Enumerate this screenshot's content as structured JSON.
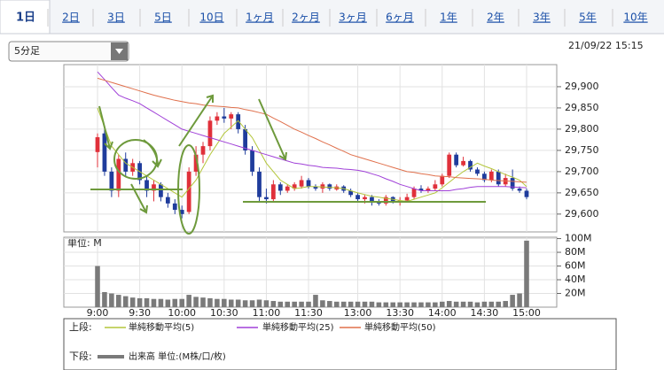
{
  "tabs": [
    "1日",
    "2日",
    "3日",
    "5日",
    "10日",
    "1ヶ月",
    "2ヶ月",
    "3ヶ月",
    "6ヶ月",
    "1年",
    "2年",
    "3年",
    "5年",
    "10年"
  ],
  "dropdown": "5分足",
  "timestamp": "21/09/22 15:15",
  "chart_data": {
    "type": "candlestick",
    "categories": [
      "9:00",
      null,
      null,
      null,
      null,
      null,
      "9:30",
      null,
      null,
      null,
      null,
      null,
      "10:00",
      null,
      null,
      null,
      null,
      null,
      "10:30",
      null,
      null,
      null,
      null,
      null,
      "11:00",
      null,
      null,
      null,
      null,
      null,
      "11:30",
      null,
      null,
      null,
      null,
      null,
      null,
      "13:00",
      null,
      null,
      null,
      null,
      null,
      "13:30",
      null,
      null,
      null,
      null,
      null,
      "14:00",
      null,
      null,
      null,
      null,
      null,
      "14:30",
      null,
      null,
      null,
      null,
      null,
      "15:00"
    ],
    "open": [
      29746,
      29790,
      29700,
      29655,
      29730,
      29700,
      29720,
      29680,
      29655,
      29670,
      29640,
      29625,
      29610,
      29605,
      29700,
      29740,
      29760,
      29820,
      29830,
      29825,
      29835,
      29800,
      29750,
      29700,
      29640,
      29635,
      29670,
      29655,
      29660,
      29665,
      29680,
      29665,
      29660,
      29670,
      29658,
      29665,
      29655,
      29645,
      29635,
      29640,
      29630,
      29625,
      29640,
      29628,
      29632,
      29640,
      29660,
      29655,
      29660,
      29670,
      29690,
      29740,
      29715,
      29725,
      29705,
      29695,
      29680,
      29700,
      29670,
      29685,
      29660,
      29655
    ],
    "high": [
      29790,
      29800,
      29710,
      29740,
      29745,
      29730,
      29725,
      29690,
      29680,
      29675,
      29650,
      29635,
      29620,
      29710,
      29760,
      29770,
      29830,
      29840,
      29850,
      29840,
      29840,
      29810,
      29760,
      29710,
      29660,
      29680,
      29675,
      29670,
      29675,
      29690,
      29685,
      29670,
      29675,
      29672,
      29670,
      29668,
      29660,
      29650,
      29645,
      29645,
      29635,
      29645,
      29642,
      29640,
      29648,
      29665,
      29668,
      29665,
      29680,
      29695,
      29745,
      29745,
      29735,
      29728,
      29710,
      29700,
      29705,
      29705,
      29695,
      29705,
      29665,
      29660
    ],
    "low": [
      29710,
      29690,
      29640,
      29640,
      29690,
      29690,
      29670,
      29640,
      29630,
      29630,
      29615,
      29600,
      29590,
      29600,
      29690,
      29720,
      29750,
      29810,
      29815,
      29800,
      29790,
      29740,
      29690,
      29630,
      29625,
      29630,
      29645,
      29650,
      29655,
      29660,
      29660,
      29655,
      29650,
      29655,
      29655,
      29650,
      29640,
      29630,
      29625,
      29620,
      29620,
      29620,
      29625,
      29620,
      29628,
      29635,
      29650,
      29650,
      29655,
      29665,
      29685,
      29710,
      29712,
      29700,
      29690,
      29675,
      29675,
      29665,
      29665,
      29655,
      29650,
      29635
    ],
    "close": [
      29781,
      29700,
      29655,
      29730,
      29700,
      29720,
      29680,
      29655,
      29670,
      29640,
      29625,
      29610,
      29600,
      29700,
      29740,
      29760,
      29820,
      29830,
      29825,
      29835,
      29800,
      29750,
      29700,
      29640,
      29635,
      29670,
      29655,
      29665,
      29670,
      29680,
      29665,
      29660,
      29670,
      29660,
      29665,
      29655,
      29645,
      29635,
      29640,
      29630,
      29625,
      29640,
      29630,
      29632,
      29640,
      29660,
      29655,
      29660,
      29670,
      29690,
      29740,
      29715,
      29725,
      29705,
      29695,
      29680,
      29700,
      29670,
      29685,
      29660,
      29655,
      29640
    ],
    "up_color": "#e0303a",
    "down_color": "#1f3c9c",
    "ylim": [
      29558,
      29952
    ],
    "yticks": [
      {
        "value": 29600,
        "label": "29,600"
      },
      {
        "value": 29650,
        "label": "29,650"
      },
      {
        "value": 29700,
        "label": "29,700"
      },
      {
        "value": 29750,
        "label": "29,750"
      },
      {
        "value": 29800,
        "label": "29,800"
      },
      {
        "value": 29850,
        "label": "29,850"
      },
      {
        "value": 29900,
        "label": "29,900"
      }
    ],
    "grid": true,
    "legend_upper_label": "上段:",
    "legend_lower_label": "下段:",
    "series": [
      {
        "name": "単純移動平均(5)",
        "color": "#b3c63a",
        "values": [
          29850,
          29805,
          29760,
          29740,
          29720,
          29710,
          29700,
          29690,
          29680,
          29670,
          29660,
          29650,
          29640,
          29660,
          29680,
          29710,
          29740,
          29765,
          29790,
          29805,
          29820,
          29800,
          29780,
          29750,
          29720,
          29700,
          29680,
          29670,
          29660,
          29662,
          29665,
          29665,
          29664,
          29663,
          29662,
          29660,
          29655,
          29650,
          29646,
          29642,
          29640,
          29637,
          29635,
          29632,
          29630,
          29635,
          29640,
          29645,
          29650,
          29662,
          29675,
          29688,
          29700,
          29710,
          29720,
          29713,
          29707,
          29700,
          29693,
          29687,
          29680,
          29665
        ]
      },
      {
        "name": "単純移動平均(25)",
        "color": "#a040d8",
        "values": [
          29935,
          29917,
          29898,
          29880,
          29873,
          29867,
          29860,
          29850,
          29840,
          29830,
          29820,
          29810,
          29800,
          29795,
          29790,
          29785,
          29780,
          29775,
          29770,
          29765,
          29760,
          29755,
          29750,
          29745,
          29740,
          29735,
          29730,
          29725,
          29720,
          29718,
          29715,
          29713,
          29710,
          29709,
          29708,
          29706,
          29705,
          29703,
          29700,
          29695,
          29690,
          29683,
          29677,
          29670,
          29665,
          29660,
          29655,
          29655,
          29655,
          29655,
          29655,
          29658,
          29660,
          29663,
          29665,
          29665,
          29665,
          29665,
          29665,
          29664,
          29663,
          29662
        ]
      },
      {
        "name": "単純移動平均(50)",
        "color": "#e0704c",
        "values": [
          29920,
          29915,
          29910,
          29905,
          29900,
          29895,
          29890,
          29885,
          29880,
          29876,
          29872,
          29868,
          29865,
          29862,
          29860,
          29857,
          29855,
          29854,
          29853,
          29851,
          29850,
          29846,
          29843,
          29839,
          29835,
          29826,
          29818,
          29809,
          29800,
          29793,
          29785,
          29778,
          29770,
          29763,
          29755,
          29748,
          29740,
          29735,
          29730,
          29725,
          29720,
          29715,
          29710,
          29705,
          29700,
          29698,
          29695,
          29693,
          29690,
          29689,
          29688,
          29686,
          29685,
          29684,
          29683,
          29682,
          29680,
          29679,
          29678,
          29677,
          29676,
          29675
        ]
      }
    ],
    "volume": {
      "name": "出来高 単位:(M株/口/枚)",
      "unit_label": "単位: M",
      "color": "#7a7a7a",
      "values": [
        60,
        22,
        20,
        18,
        16,
        14,
        13,
        13,
        12,
        12,
        11,
        12,
        12,
        18,
        15,
        14,
        13,
        12,
        12,
        11,
        11,
        10,
        10,
        11,
        10,
        9,
        8,
        8,
        8,
        8,
        8,
        18,
        10,
        9,
        8,
        8,
        8,
        8,
        8,
        8,
        7,
        7,
        7,
        7,
        7,
        7,
        7,
        7,
        7,
        8,
        9,
        8,
        8,
        8,
        7,
        8,
        8,
        8,
        9,
        18,
        20,
        97
      ],
      "ylim": [
        0,
        102
      ],
      "yticks": [
        {
          "value": 20,
          "label": "20M"
        },
        {
          "value": 40,
          "label": "40M"
        },
        {
          "value": 60,
          "label": "60M"
        },
        {
          "value": 80,
          "label": "80M"
        },
        {
          "value": 100,
          "label": "100M"
        }
      ]
    }
  }
}
